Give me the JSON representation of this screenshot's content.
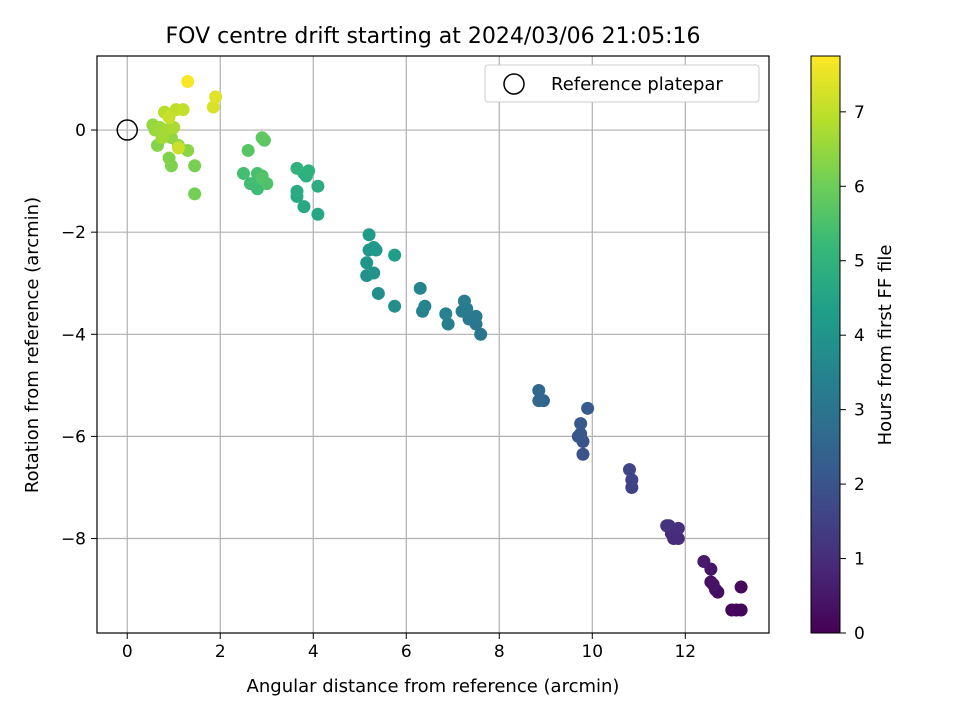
{
  "chart_data": {
    "type": "scatter",
    "title": "FOV centre drift starting at 2024/03/06 21:05:16",
    "xlabel": "Angular distance from reference (arcmin)",
    "ylabel": "Rotation from reference (arcmin)",
    "xlim": [
      -0.65,
      13.8
    ],
    "ylim": [
      -9.85,
      1.45
    ],
    "xticks": [
      0,
      2,
      4,
      6,
      8,
      10,
      12
    ],
    "yticks": [
      0,
      -2,
      -4,
      -6,
      -8
    ],
    "grid": true,
    "legend": {
      "placement": "top-right",
      "entries": [
        "Reference platepar"
      ]
    },
    "reference_point": {
      "x": 0,
      "y": 0
    },
    "colorbar": {
      "label": "Hours from first FF file",
      "range": [
        0,
        7.75
      ],
      "ticks": [
        0,
        1,
        2,
        3,
        4,
        5,
        6,
        7
      ],
      "colormap": [
        "#440154",
        "#482878",
        "#3e4a89",
        "#31688e",
        "#26828e",
        "#1f9e89",
        "#35b779",
        "#6ece58",
        "#b5de2b",
        "#fde725"
      ]
    },
    "points": [
      [
        13.1,
        -9.4,
        0.05
      ],
      [
        13.2,
        -9.4,
        0.1
      ],
      [
        13.0,
        -9.4,
        0.12
      ],
      [
        13.2,
        -8.95,
        0.2
      ],
      [
        12.7,
        -9.05,
        0.25
      ],
      [
        12.65,
        -9.0,
        0.3
      ],
      [
        12.55,
        -8.85,
        0.35
      ],
      [
        12.6,
        -8.9,
        0.4
      ],
      [
        12.55,
        -8.6,
        0.45
      ],
      [
        12.4,
        -8.45,
        0.55
      ],
      [
        11.85,
        -8.0,
        0.9
      ],
      [
        11.75,
        -8.0,
        0.95
      ],
      [
        11.7,
        -7.9,
        1.0
      ],
      [
        11.85,
        -7.8,
        1.05
      ],
      [
        11.65,
        -7.75,
        1.1
      ],
      [
        11.6,
        -7.75,
        1.15
      ],
      [
        10.85,
        -7.0,
        1.5
      ],
      [
        10.85,
        -6.85,
        1.55
      ],
      [
        10.8,
        -6.65,
        1.6
      ],
      [
        9.8,
        -6.35,
        1.95
      ],
      [
        9.8,
        -6.1,
        2.0
      ],
      [
        9.7,
        -6.0,
        2.05
      ],
      [
        9.75,
        -5.95,
        2.1
      ],
      [
        9.75,
        -5.75,
        2.15
      ],
      [
        9.9,
        -5.45,
        2.2
      ],
      [
        8.95,
        -5.3,
        2.5
      ],
      [
        8.85,
        -5.3,
        2.55
      ],
      [
        8.85,
        -5.1,
        2.6
      ],
      [
        7.6,
        -4.0,
        3.0
      ],
      [
        7.5,
        -3.8,
        3.05
      ],
      [
        7.35,
        -3.7,
        3.1
      ],
      [
        7.5,
        -3.65,
        3.15
      ],
      [
        7.2,
        -3.55,
        3.2
      ],
      [
        7.3,
        -3.5,
        3.25
      ],
      [
        7.25,
        -3.35,
        3.3
      ],
      [
        6.9,
        -3.8,
        3.35
      ],
      [
        6.85,
        -3.6,
        3.4
      ],
      [
        6.35,
        -3.55,
        3.45
      ],
      [
        6.4,
        -3.45,
        3.5
      ],
      [
        6.3,
        -3.1,
        3.55
      ],
      [
        5.75,
        -3.45,
        3.8
      ],
      [
        5.4,
        -3.2,
        3.85
      ],
      [
        5.15,
        -2.85,
        3.9
      ],
      [
        5.3,
        -2.8,
        3.95
      ],
      [
        5.15,
        -2.6,
        4.0
      ],
      [
        5.2,
        -2.35,
        4.05
      ],
      [
        5.35,
        -2.35,
        4.1
      ],
      [
        5.3,
        -2.3,
        4.15
      ],
      [
        5.2,
        -2.05,
        4.2
      ],
      [
        5.75,
        -2.45,
        4.3
      ],
      [
        4.1,
        -1.65,
        4.6
      ],
      [
        3.8,
        -1.5,
        4.65
      ],
      [
        3.65,
        -1.3,
        4.7
      ],
      [
        3.65,
        -1.2,
        4.75
      ],
      [
        4.1,
        -1.1,
        4.8
      ],
      [
        3.85,
        -0.9,
        4.85
      ],
      [
        3.8,
        -0.85,
        4.9
      ],
      [
        3.9,
        -0.8,
        4.95
      ],
      [
        3.65,
        -0.75,
        5.0
      ],
      [
        2.8,
        -1.15,
        5.3
      ],
      [
        2.65,
        -1.05,
        5.35
      ],
      [
        2.5,
        -0.85,
        5.4
      ],
      [
        2.8,
        -0.85,
        5.45
      ],
      [
        2.9,
        -0.9,
        5.5
      ],
      [
        3.0,
        -1.05,
        5.55
      ],
      [
        2.9,
        -0.95,
        5.6
      ],
      [
        2.6,
        -0.4,
        5.7
      ],
      [
        2.95,
        -0.2,
        5.75
      ],
      [
        2.9,
        -0.15,
        5.8
      ],
      [
        1.45,
        -1.25,
        6.1
      ],
      [
        1.45,
        -0.7,
        6.15
      ],
      [
        0.95,
        -0.7,
        6.2
      ],
      [
        0.9,
        -0.55,
        6.25
      ],
      [
        0.65,
        -0.3,
        6.3
      ],
      [
        1.3,
        -0.4,
        6.35
      ],
      [
        1.1,
        -0.3,
        6.4
      ],
      [
        0.95,
        -0.15,
        6.45
      ],
      [
        0.55,
        0.1,
        6.5
      ],
      [
        0.6,
        0.0,
        6.55
      ],
      [
        0.7,
        0.05,
        6.6
      ],
      [
        0.75,
        -0.15,
        6.65
      ],
      [
        0.85,
        0.0,
        6.7
      ],
      [
        1.0,
        0.05,
        6.75
      ],
      [
        0.8,
        0.35,
        6.9
      ],
      [
        0.9,
        0.3,
        6.95
      ],
      [
        1.05,
        0.4,
        7.0
      ],
      [
        1.2,
        0.4,
        7.05
      ],
      [
        0.9,
        0.25,
        7.1
      ],
      [
        1.1,
        -0.35,
        7.15
      ],
      [
        1.85,
        0.45,
        7.3
      ],
      [
        1.9,
        0.65,
        7.4
      ],
      [
        1.3,
        0.95,
        7.7
      ]
    ]
  }
}
